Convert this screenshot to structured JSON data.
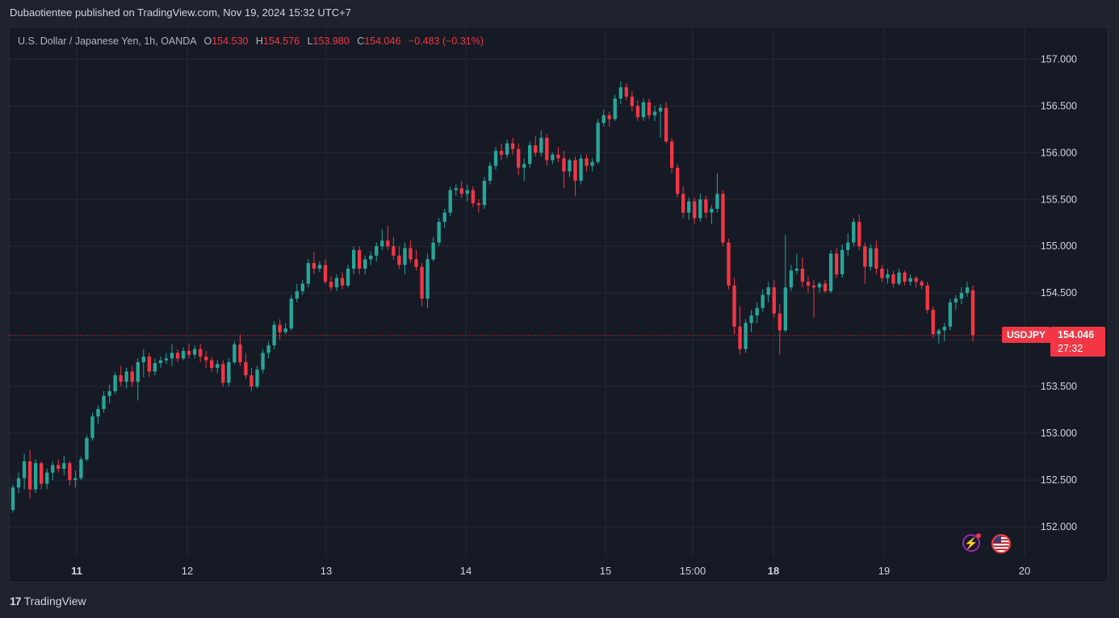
{
  "caption": "Dubaotientee published on TradingView.com, Nov 19, 2024 15:32 UTC+7",
  "legend": {
    "symbol": "U.S. Dollar / Japanese Yen, 1h, OANDA",
    "o_label": "O",
    "o_value": "154.530",
    "h_label": "H",
    "h_value": "154.576",
    "l_label": "L",
    "l_value": "153.980",
    "c_label": "C",
    "c_value": "154.046",
    "change": "−0.483 (−0.31%)"
  },
  "last_price": {
    "symbol": "USDJPY",
    "price": "154.046",
    "countdown": "27:32"
  },
  "footer": {
    "logo_mark": "17",
    "logo_text": "TradingView"
  },
  "icons": [
    "lightning-icon",
    "us-flag-icon"
  ],
  "colors": {
    "up": "#26a69a",
    "down": "#f23645",
    "background": "#161a25",
    "grid": "#252a36",
    "text": "#d1d4dc"
  },
  "chart_data": {
    "type": "candlestick",
    "title": "U.S. Dollar / Japanese Yen, 1h, OANDA",
    "y_ticks": [
      152.0,
      152.5,
      153.0,
      153.5,
      154.0,
      154.5,
      155.0,
      155.5,
      156.0,
      156.5,
      157.0
    ],
    "ylim": [
      151.68,
      157.34
    ],
    "x_ticks": [
      {
        "label": "11",
        "bold": true
      },
      {
        "label": "12",
        "bold": false
      },
      {
        "label": "13",
        "bold": false
      },
      {
        "label": "14",
        "bold": false
      },
      {
        "label": "15",
        "bold": false
      },
      {
        "label": "15:00",
        "bold": false
      },
      {
        "label": "18",
        "bold": true
      },
      {
        "label": "19",
        "bold": false
      },
      {
        "label": "20",
        "bold": false
      }
    ],
    "last_close": 154.046,
    "grid": true,
    "candles": [
      [
        152.18,
        152.45,
        152.15,
        152.42
      ],
      [
        152.42,
        152.58,
        152.36,
        152.52
      ],
      [
        152.52,
        152.78,
        152.4,
        152.7
      ],
      [
        152.7,
        152.82,
        152.3,
        152.4
      ],
      [
        152.4,
        152.72,
        152.36,
        152.68
      ],
      [
        152.68,
        152.7,
        152.4,
        152.46
      ],
      [
        152.46,
        152.62,
        152.4,
        152.58
      ],
      [
        152.58,
        152.7,
        152.5,
        152.66
      ],
      [
        152.66,
        152.72,
        152.58,
        152.62
      ],
      [
        152.62,
        152.76,
        152.55,
        152.68
      ],
      [
        152.68,
        152.7,
        152.44,
        152.5
      ],
      [
        152.5,
        152.6,
        152.42,
        152.52
      ],
      [
        152.52,
        152.75,
        152.5,
        152.72
      ],
      [
        152.72,
        152.98,
        152.7,
        152.95
      ],
      [
        152.95,
        153.22,
        152.92,
        153.18
      ],
      [
        153.18,
        153.3,
        153.1,
        153.26
      ],
      [
        153.26,
        153.45,
        153.22,
        153.4
      ],
      [
        153.4,
        153.52,
        153.32,
        153.45
      ],
      [
        153.45,
        153.65,
        153.42,
        153.62
      ],
      [
        153.62,
        153.72,
        153.5,
        153.55
      ],
      [
        153.55,
        153.7,
        153.48,
        153.66
      ],
      [
        153.66,
        153.72,
        153.5,
        153.55
      ],
      [
        153.55,
        153.8,
        153.35,
        153.76
      ],
      [
        153.76,
        153.9,
        153.6,
        153.82
      ],
      [
        153.82,
        153.86,
        153.6,
        153.66
      ],
      [
        153.66,
        153.8,
        153.62,
        153.75
      ],
      [
        153.75,
        153.82,
        153.7,
        153.78
      ],
      [
        153.78,
        153.86,
        153.74,
        153.8
      ],
      [
        153.8,
        153.95,
        153.72,
        153.86
      ],
      [
        153.86,
        153.9,
        153.76,
        153.8
      ],
      [
        153.8,
        153.92,
        153.78,
        153.88
      ],
      [
        153.88,
        153.96,
        153.8,
        153.84
      ],
      [
        153.84,
        153.94,
        153.8,
        153.9
      ],
      [
        153.9,
        153.96,
        153.76,
        153.82
      ],
      [
        153.82,
        153.88,
        153.7,
        153.78
      ],
      [
        153.78,
        153.82,
        153.66,
        153.7
      ],
      [
        153.7,
        153.78,
        153.64,
        153.74
      ],
      [
        153.74,
        153.78,
        153.5,
        153.54
      ],
      [
        153.54,
        153.8,
        153.5,
        153.76
      ],
      [
        153.76,
        153.98,
        153.74,
        153.95
      ],
      [
        153.95,
        154.06,
        153.72,
        153.76
      ],
      [
        153.76,
        153.86,
        153.58,
        153.62
      ],
      [
        153.62,
        153.7,
        153.45,
        153.5
      ],
      [
        153.5,
        153.72,
        153.48,
        153.68
      ],
      [
        153.68,
        153.9,
        153.64,
        153.86
      ],
      [
        153.86,
        153.98,
        153.8,
        153.94
      ],
      [
        153.94,
        154.2,
        153.9,
        154.16
      ],
      [
        154.16,
        154.22,
        154.0,
        154.08
      ],
      [
        154.08,
        154.18,
        154.06,
        154.12
      ],
      [
        154.12,
        154.48,
        154.1,
        154.44
      ],
      [
        154.44,
        154.6,
        154.4,
        154.52
      ],
      [
        154.52,
        154.64,
        154.48,
        154.6
      ],
      [
        154.6,
        154.86,
        154.56,
        154.82
      ],
      [
        154.82,
        154.94,
        154.7,
        154.76
      ],
      [
        154.76,
        154.84,
        154.72,
        154.8
      ],
      [
        154.8,
        154.86,
        154.6,
        154.62
      ],
      [
        154.62,
        154.68,
        154.52,
        154.56
      ],
      [
        154.56,
        154.7,
        154.52,
        154.66
      ],
      [
        154.66,
        154.72,
        154.54,
        154.58
      ],
      [
        154.58,
        154.8,
        154.56,
        154.76
      ],
      [
        154.76,
        155.0,
        154.7,
        154.96
      ],
      [
        154.96,
        155.0,
        154.7,
        154.76
      ],
      [
        154.76,
        154.9,
        154.7,
        154.86
      ],
      [
        154.86,
        154.94,
        154.8,
        154.9
      ],
      [
        154.9,
        155.04,
        154.84,
        155.0
      ],
      [
        155.0,
        155.18,
        154.96,
        155.06
      ],
      [
        155.06,
        155.22,
        154.96,
        155.0
      ],
      [
        155.0,
        155.1,
        154.86,
        154.9
      ],
      [
        154.9,
        155.0,
        154.76,
        154.8
      ],
      [
        154.8,
        155.04,
        154.7,
        154.98
      ],
      [
        154.98,
        155.06,
        154.82,
        154.86
      ],
      [
        154.86,
        154.96,
        154.74,
        154.78
      ],
      [
        154.78,
        154.82,
        154.36,
        154.44
      ],
      [
        154.44,
        154.92,
        154.34,
        154.86
      ],
      [
        154.86,
        155.1,
        154.84,
        155.04
      ],
      [
        155.04,
        155.3,
        155.0,
        155.26
      ],
      [
        155.26,
        155.4,
        155.2,
        155.36
      ],
      [
        155.36,
        155.64,
        155.32,
        155.6
      ],
      [
        155.6,
        155.66,
        155.54,
        155.62
      ],
      [
        155.62,
        155.7,
        155.52,
        155.56
      ],
      [
        155.56,
        155.66,
        155.48,
        155.6
      ],
      [
        155.6,
        155.64,
        155.42,
        155.46
      ],
      [
        155.46,
        155.5,
        155.36,
        155.44
      ],
      [
        155.44,
        155.74,
        155.4,
        155.7
      ],
      [
        155.7,
        155.9,
        155.66,
        155.86
      ],
      [
        155.86,
        156.06,
        155.82,
        156.02
      ],
      [
        156.02,
        156.1,
        155.92,
        155.98
      ],
      [
        155.98,
        156.14,
        155.94,
        156.1
      ],
      [
        156.1,
        156.16,
        155.98,
        156.04
      ],
      [
        156.04,
        156.1,
        155.76,
        155.84
      ],
      [
        155.84,
        155.94,
        155.7,
        155.88
      ],
      [
        155.88,
        156.12,
        155.84,
        156.08
      ],
      [
        156.08,
        156.18,
        155.96,
        156.0
      ],
      [
        156.0,
        156.24,
        155.96,
        156.16
      ],
      [
        156.16,
        156.2,
        155.86,
        155.92
      ],
      [
        155.92,
        156.0,
        155.88,
        155.98
      ],
      [
        155.98,
        156.06,
        155.9,
        155.94
      ],
      [
        155.94,
        156.02,
        155.62,
        155.8
      ],
      [
        155.8,
        155.94,
        155.74,
        155.92
      ],
      [
        155.92,
        155.96,
        155.54,
        155.7
      ],
      [
        155.7,
        155.98,
        155.66,
        155.94
      ],
      [
        155.94,
        155.98,
        155.8,
        155.86
      ],
      [
        155.86,
        155.94,
        155.8,
        155.9
      ],
      [
        155.9,
        156.36,
        155.88,
        156.32
      ],
      [
        156.32,
        156.46,
        156.28,
        156.4
      ],
      [
        156.4,
        156.44,
        156.28,
        156.36
      ],
      [
        156.36,
        156.62,
        156.34,
        156.58
      ],
      [
        156.58,
        156.76,
        156.52,
        156.7
      ],
      [
        156.7,
        156.74,
        156.56,
        156.6
      ],
      [
        156.6,
        156.66,
        156.44,
        156.5
      ],
      [
        156.5,
        156.56,
        156.34,
        156.38
      ],
      [
        156.38,
        156.58,
        156.34,
        156.54
      ],
      [
        156.54,
        156.58,
        156.36,
        156.4
      ],
      [
        156.4,
        156.5,
        156.34,
        156.44
      ],
      [
        156.44,
        156.52,
        156.16,
        156.48
      ],
      [
        156.48,
        156.54,
        156.1,
        156.12
      ],
      [
        156.12,
        156.16,
        155.78,
        155.84
      ],
      [
        155.84,
        155.88,
        155.52,
        155.56
      ],
      [
        155.56,
        155.64,
        155.3,
        155.36
      ],
      [
        155.36,
        155.52,
        155.28,
        155.48
      ],
      [
        155.48,
        155.52,
        155.24,
        155.3
      ],
      [
        155.3,
        155.56,
        155.26,
        155.5
      ],
      [
        155.5,
        155.54,
        155.3,
        155.36
      ],
      [
        155.36,
        155.44,
        155.24,
        155.4
      ],
      [
        155.4,
        155.78,
        155.36,
        155.56
      ],
      [
        155.56,
        155.6,
        155.0,
        155.04
      ],
      [
        155.04,
        155.08,
        154.54,
        154.58
      ],
      [
        154.58,
        154.66,
        154.06,
        154.14
      ],
      [
        154.14,
        154.36,
        153.84,
        153.9
      ],
      [
        153.9,
        154.22,
        153.86,
        154.18
      ],
      [
        154.18,
        154.32,
        154.08,
        154.26
      ],
      [
        154.26,
        154.4,
        154.18,
        154.34
      ],
      [
        154.34,
        154.54,
        154.3,
        154.48
      ],
      [
        154.48,
        154.62,
        154.4,
        154.56
      ],
      [
        154.56,
        154.64,
        154.24,
        154.28
      ],
      [
        154.28,
        154.38,
        153.84,
        154.1
      ],
      [
        154.1,
        155.12,
        154.08,
        154.56
      ],
      [
        154.56,
        154.8,
        154.52,
        154.74
      ],
      [
        154.74,
        154.92,
        154.7,
        154.76
      ],
      [
        154.76,
        154.88,
        154.56,
        154.62
      ],
      [
        154.62,
        154.68,
        154.5,
        154.58
      ],
      [
        154.58,
        154.64,
        154.24,
        154.56
      ],
      [
        154.56,
        154.62,
        154.5,
        154.6
      ],
      [
        154.6,
        154.64,
        154.5,
        154.52
      ],
      [
        154.52,
        154.96,
        154.5,
        154.92
      ],
      [
        154.92,
        154.98,
        154.66,
        154.7
      ],
      [
        154.7,
        155.02,
        154.66,
        154.96
      ],
      [
        154.96,
        155.14,
        154.9,
        155.04
      ],
      [
        155.04,
        155.3,
        155.0,
        155.26
      ],
      [
        155.26,
        155.34,
        154.96,
        155.0
      ],
      [
        155.0,
        155.04,
        154.6,
        154.78
      ],
      [
        154.78,
        155.02,
        154.74,
        154.98
      ],
      [
        154.98,
        155.06,
        154.7,
        154.76
      ],
      [
        154.76,
        154.8,
        154.62,
        154.66
      ],
      [
        154.66,
        154.76,
        154.6,
        154.7
      ],
      [
        154.7,
        154.74,
        154.56,
        154.6
      ],
      [
        154.6,
        154.76,
        154.58,
        154.72
      ],
      [
        154.72,
        154.74,
        154.58,
        154.62
      ],
      [
        154.62,
        154.7,
        154.58,
        154.66
      ],
      [
        154.66,
        154.68,
        154.56,
        154.62
      ],
      [
        154.62,
        154.64,
        154.54,
        154.58
      ],
      [
        154.58,
        154.62,
        154.28,
        154.32
      ],
      [
        154.32,
        154.36,
        154.02,
        154.06
      ],
      [
        154.06,
        154.12,
        153.96,
        154.1
      ],
      [
        154.1,
        154.18,
        153.98,
        154.14
      ],
      [
        154.14,
        154.44,
        154.1,
        154.4
      ],
      [
        154.4,
        154.48,
        154.32,
        154.44
      ],
      [
        154.44,
        154.56,
        154.38,
        154.5
      ],
      [
        154.5,
        154.62,
        154.46,
        154.56
      ],
      [
        154.53,
        154.58,
        153.98,
        154.05
      ]
    ]
  }
}
